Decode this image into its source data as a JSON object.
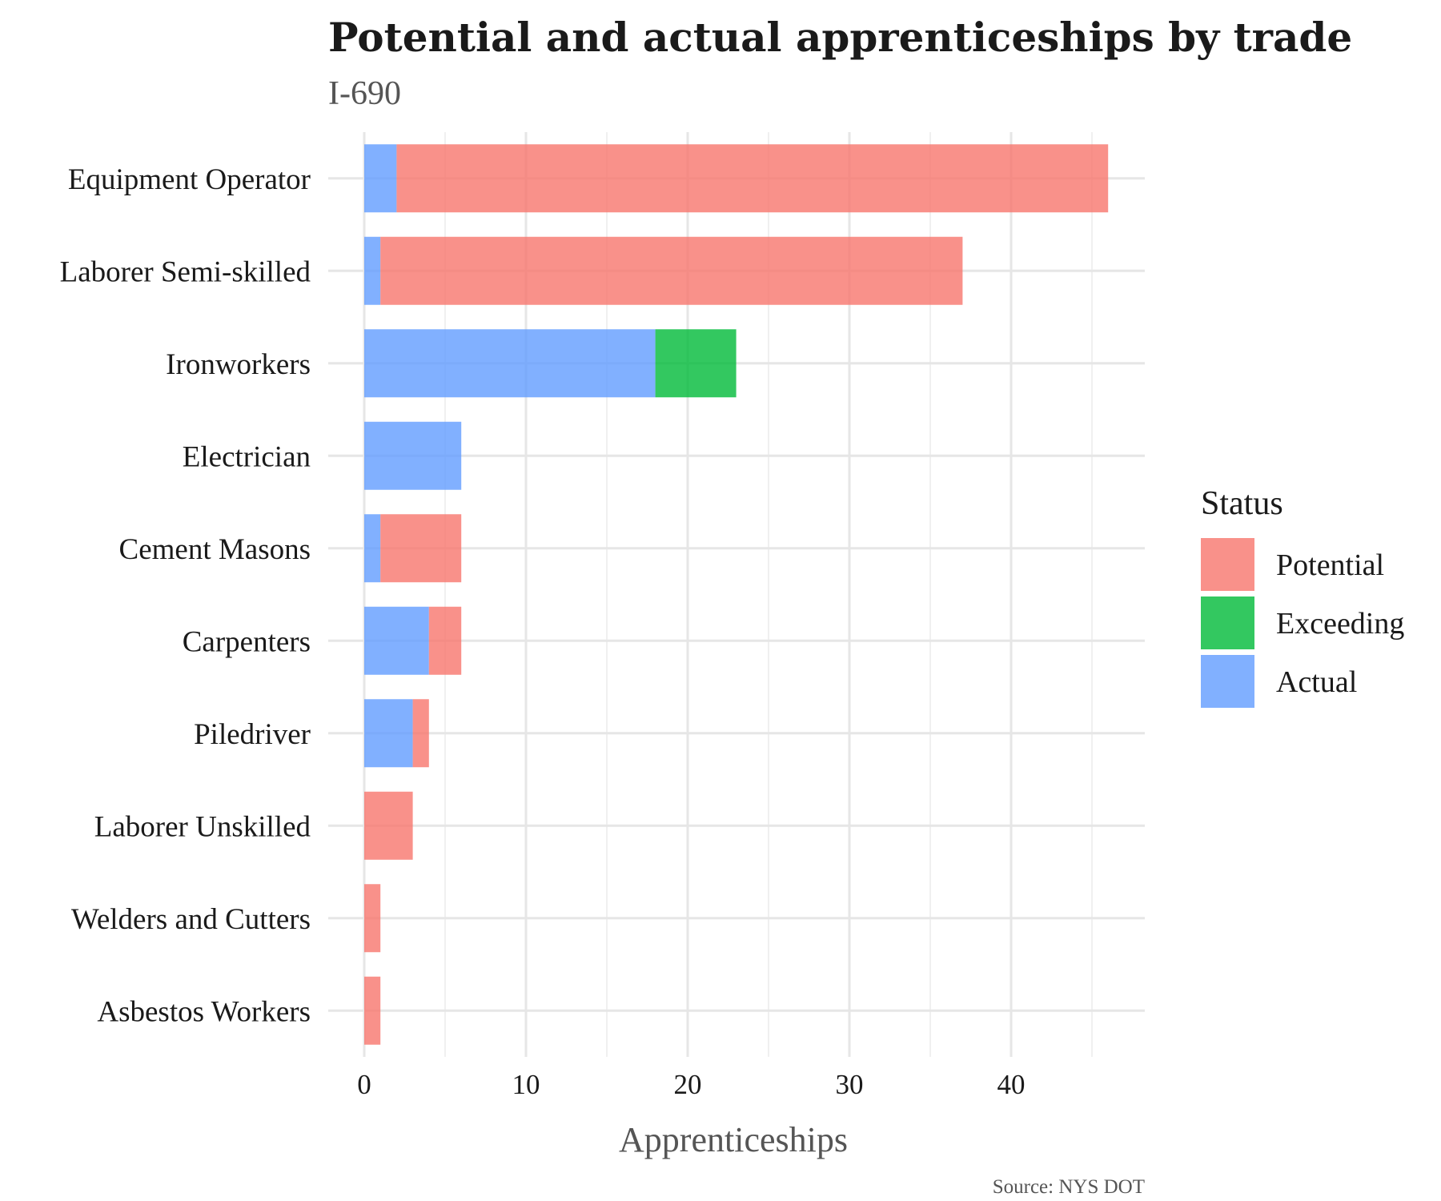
{
  "chart_data": {
    "type": "bar",
    "orientation": "horizontal",
    "stacked": true,
    "title": "Potential and actual apprenticeships by trade",
    "subtitle": "I-690",
    "xlabel": "Apprenticeships",
    "ylabel": "",
    "caption": "Source: NYS DOT",
    "xlim": [
      0,
      48
    ],
    "xticks": [
      0,
      10,
      20,
      30,
      40
    ],
    "grid": true,
    "legend": {
      "title": "Status",
      "placement": "right",
      "entries": [
        {
          "name": "Potential",
          "color": "#f8766d"
        },
        {
          "name": "Exceeding",
          "color": "#00ba38"
        },
        {
          "name": "Actual",
          "color": "#619cff"
        }
      ]
    },
    "categories": [
      "Equipment Operator",
      "Laborer Semi-skilled",
      "Ironworkers",
      "Electrician",
      "Cement Masons",
      "Carpenters",
      "Piledriver",
      "Laborer Unskilled",
      "Welders and Cutters",
      "Asbestos Workers"
    ],
    "series": [
      {
        "name": "Actual",
        "color": "#619cff",
        "values": [
          2,
          1,
          18,
          6,
          1,
          4,
          3,
          0,
          0,
          0
        ]
      },
      {
        "name": "Exceeding",
        "color": "#00ba38",
        "values": [
          0,
          0,
          5,
          0,
          0,
          0,
          0,
          0,
          0,
          0
        ]
      },
      {
        "name": "Potential",
        "color": "#f8766d",
        "values": [
          44,
          36,
          0,
          0,
          5,
          2,
          1,
          3,
          1,
          1
        ]
      }
    ]
  }
}
